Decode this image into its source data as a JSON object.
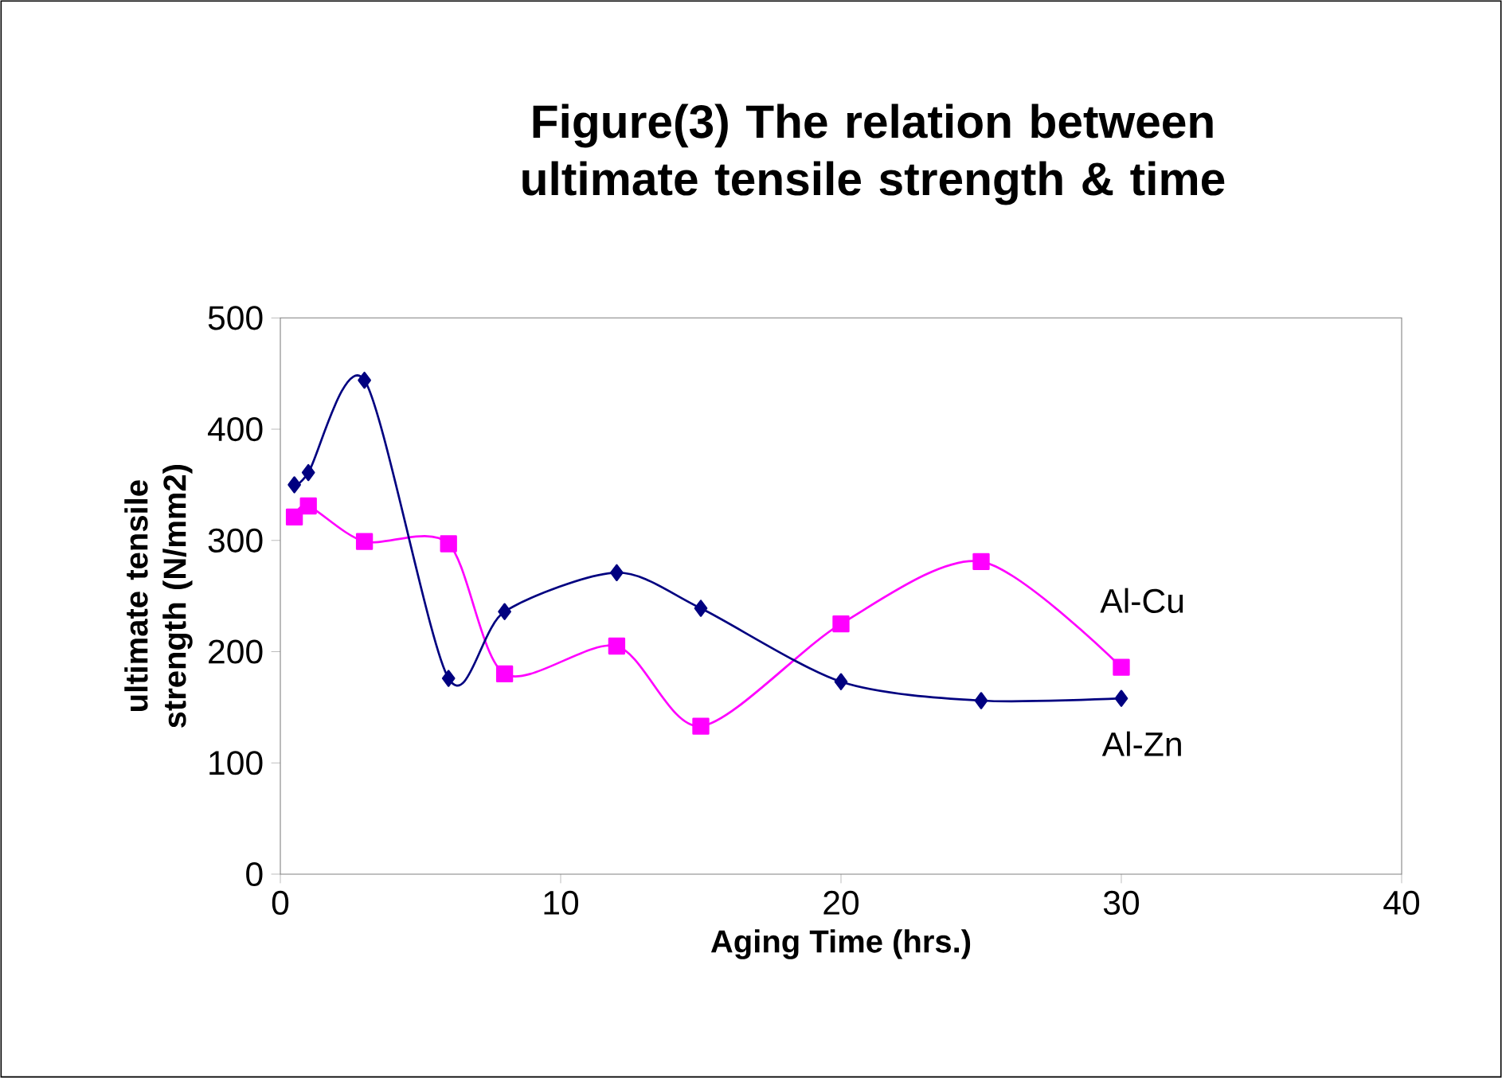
{
  "chart_data": {
    "type": "line",
    "title": "Figure(3) The relation between ultimate tensile strength & time",
    "xlabel": "Aging Time (hrs.)",
    "ylabel": "ultimate tensile strength (N/mm2)",
    "xlim": [
      0,
      40
    ],
    "xticks": [
      0,
      10,
      20,
      30,
      40
    ],
    "ylim": [
      0,
      500
    ],
    "yticks": [
      0,
      100,
      200,
      300,
      400,
      500
    ],
    "grid": false,
    "legend": false,
    "series": [
      {
        "name": "Al-Cu",
        "color": "#ff00ff",
        "marker": "square",
        "x": [
          0.5,
          1,
          3,
          6,
          8,
          12,
          15,
          20,
          25,
          30
        ],
        "values": [
          321,
          331,
          299,
          297,
          180,
          205,
          133,
          225,
          281,
          186
        ]
      },
      {
        "name": "Al-Zn",
        "color": "#000080",
        "marker": "diamond",
        "x": [
          0.5,
          1,
          3,
          6,
          8,
          12,
          15,
          20,
          25,
          30
        ],
        "values": [
          350,
          361,
          444,
          176,
          236,
          271,
          239,
          173,
          156,
          158
        ]
      }
    ]
  }
}
